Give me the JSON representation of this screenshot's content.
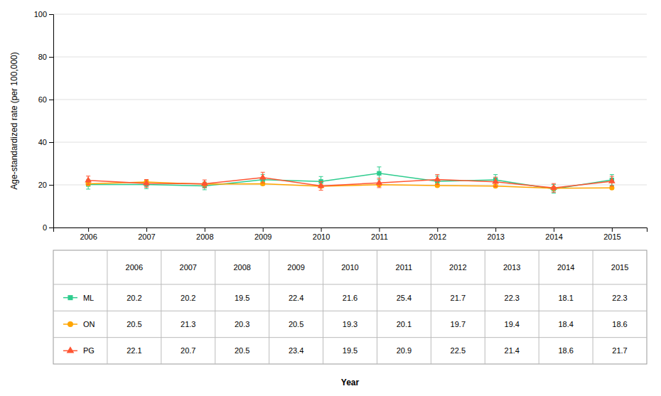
{
  "chart_data": {
    "type": "line",
    "ylabel": "Age-standardized rate (per 100,000)",
    "xlabel": "Year",
    "x": [
      2006,
      2007,
      2008,
      2009,
      2010,
      2011,
      2012,
      2013,
      2014,
      2015
    ],
    "xlim": [
      2005.4,
      2015.6
    ],
    "xticks": [
      2006,
      2007,
      2008,
      2009,
      2010,
      2011,
      2012,
      2013,
      2014,
      2015
    ],
    "ylim": [
      0,
      100
    ],
    "yticks": [
      0,
      20,
      40,
      60,
      80,
      100
    ],
    "grid": true,
    "series": [
      {
        "name": "ML",
        "color": "#2ECC8E",
        "marker": "square",
        "values": [
          20.2,
          20.2,
          19.5,
          22.4,
          21.6,
          25.4,
          21.7,
          22.3,
          18.1,
          22.3
        ],
        "errors": [
          2.2,
          2.0,
          1.8,
          2.5,
          2.3,
          3.0,
          2.4,
          2.5,
          2.0,
          2.5
        ]
      },
      {
        "name": "ON",
        "color": "#FFA500",
        "marker": "circle",
        "values": [
          20.5,
          21.3,
          20.3,
          20.5,
          19.3,
          20.1,
          19.7,
          19.4,
          18.4,
          18.6
        ],
        "errors": [
          0.55,
          0.55,
          0.55,
          0.55,
          0.55,
          0.55,
          0.55,
          0.55,
          0.55,
          0.55
        ]
      },
      {
        "name": "PG",
        "color": "#FF5533",
        "marker": "triangle",
        "values": [
          22.1,
          20.7,
          20.5,
          23.4,
          19.5,
          20.9,
          22.5,
          21.4,
          18.6,
          21.7
        ],
        "errors": [
          2.0,
          1.8,
          1.8,
          2.5,
          2.0,
          2.2,
          2.3,
          2.2,
          2.0,
          2.3
        ]
      }
    ]
  }
}
